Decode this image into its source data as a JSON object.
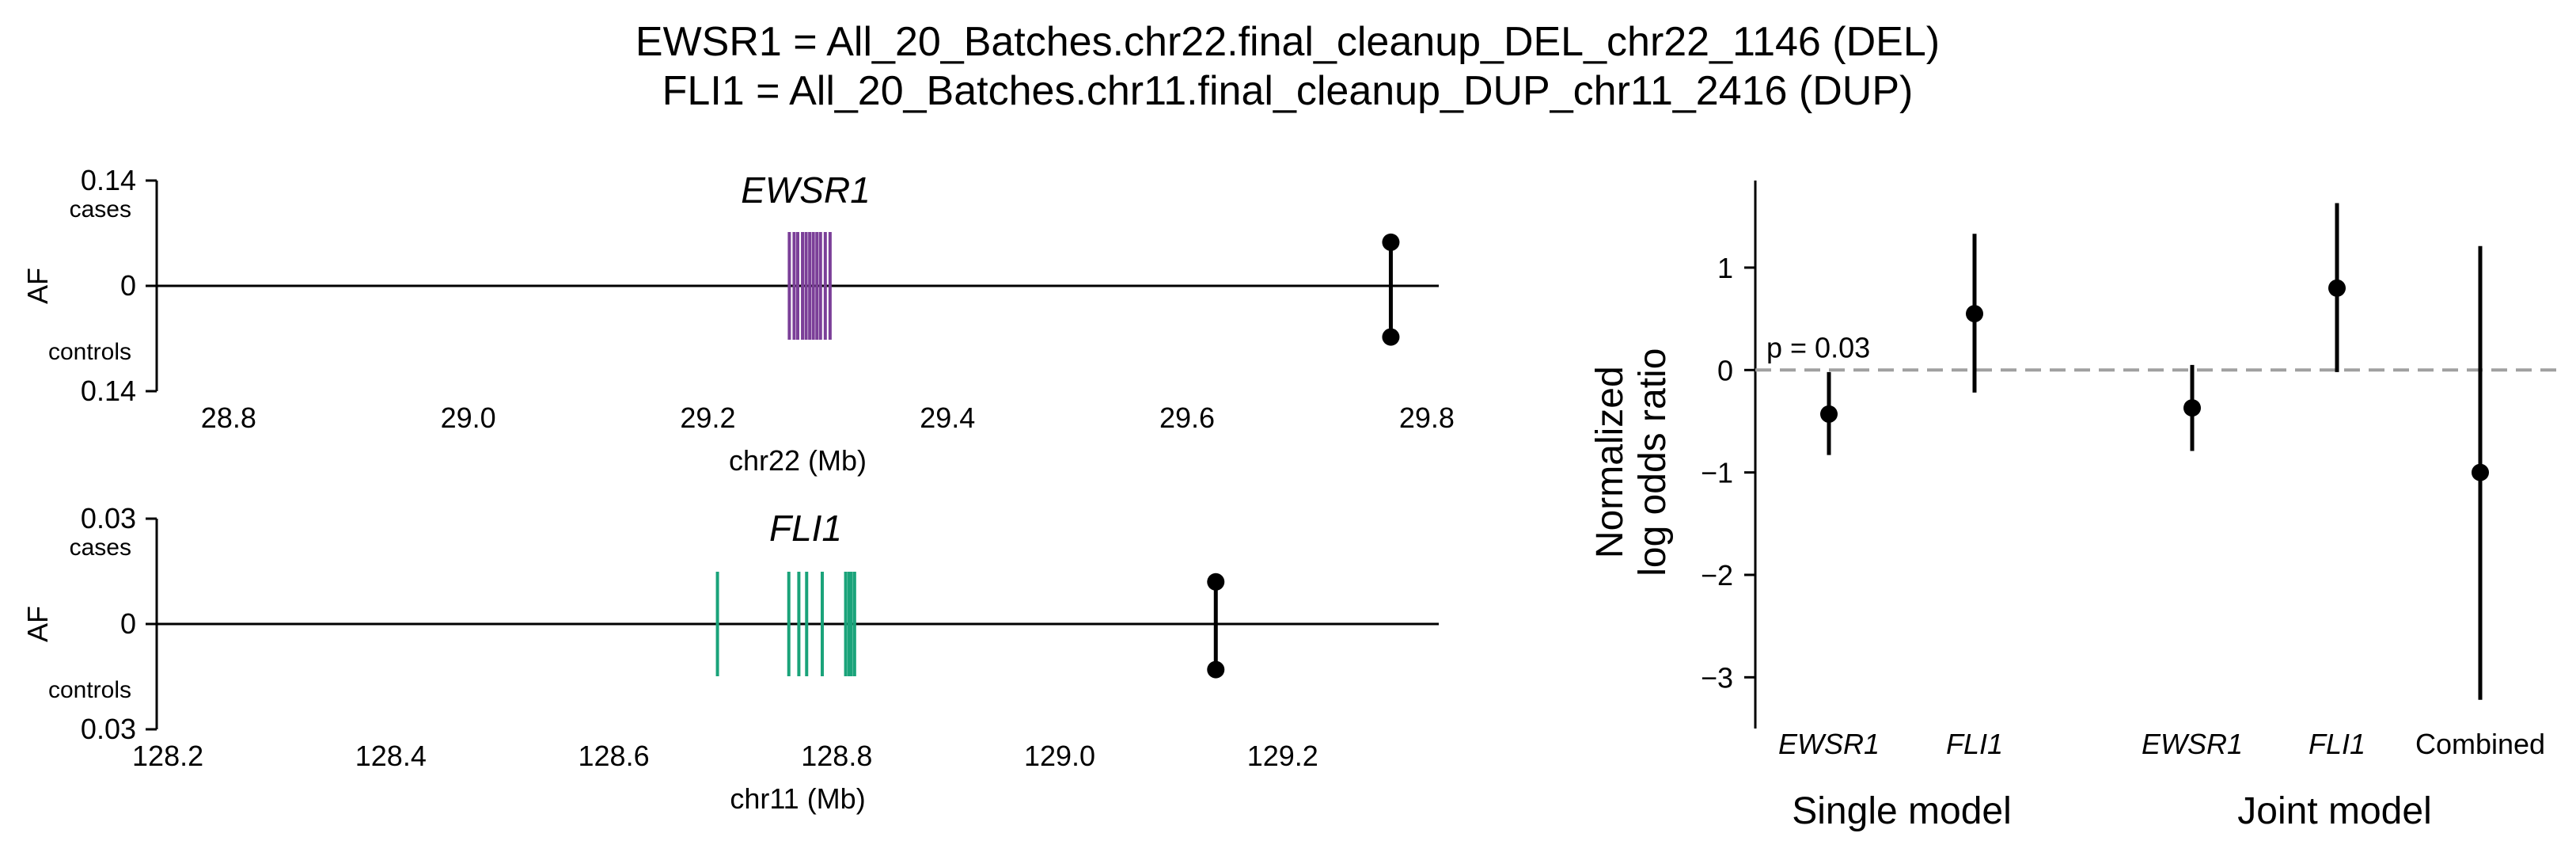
{
  "title_lines": [
    "EWSR1 = All_20_Batches.chr22.final_cleanup_DEL_chr22_1146 (DEL)",
    "FLI1 = All_20_Batches.chr11.final_cleanup_DUP_chr11_2416 (DUP)"
  ],
  "chart_data": [
    {
      "type": "scatter",
      "panel": "EWSR1 locus",
      "title": "EWSR1",
      "xlabel": "chr22 (Mb)",
      "ylabel": "AF",
      "xlim": [
        28.74,
        29.81
      ],
      "ylim": [
        -0.14,
        0.14
      ],
      "x_ticks": [
        28.8,
        29.0,
        29.2,
        29.4,
        29.6,
        29.8
      ],
      "x_tick_labels": [
        "28.8",
        "29.0",
        "29.2",
        "29.4",
        "29.6",
        "29.8"
      ],
      "y_tick_labels": [
        "0.14",
        "0",
        "0.14"
      ],
      "y_top_label": "cases",
      "y_bottom_label": "controls",
      "gene_color": "#7b3f98",
      "exons": [
        29.268,
        29.272,
        29.275,
        29.279,
        29.282,
        29.285,
        29.288,
        29.291,
        29.294,
        29.298,
        29.302
      ],
      "sv": {
        "x": 29.77,
        "af_cases": 0.058,
        "af_controls": 0.068
      }
    },
    {
      "type": "scatter",
      "panel": "FLI1 locus",
      "title": "FLI1",
      "xlabel": "chr11 (Mb)",
      "ylabel": "AF",
      "xlim": [
        128.19,
        129.34
      ],
      "ylim": [
        -0.03,
        0.03
      ],
      "x_ticks": [
        128.2,
        128.4,
        128.6,
        128.8,
        129.0,
        129.2
      ],
      "x_tick_labels": [
        "128.2",
        "128.4",
        "128.6",
        "128.8",
        "129.0",
        "129.2"
      ],
      "y_tick_labels": [
        "0.03",
        "0",
        "0.03"
      ],
      "y_top_label": "cases",
      "y_bottom_label": "controls",
      "gene_color": "#1aa37a",
      "exons": [
        128.693,
        128.757,
        128.766,
        128.773,
        128.787,
        128.808,
        128.811,
        128.813,
        128.816
      ],
      "sv": {
        "x": 129.14,
        "af_cases": 0.012,
        "af_controls": 0.013
      }
    },
    {
      "type": "scatter",
      "panel": "log odds ratios",
      "ylabel": "Normalized log odds ratio",
      "ylim": [
        -3.5,
        1.85
      ],
      "y_ticks": [
        1,
        0,
        -1,
        -2,
        -3
      ],
      "y_tick_labels": [
        "1",
        "0",
        "−1",
        "−2",
        "−3"
      ],
      "reference_line": 0,
      "annotation": "p = 0.03",
      "categories": [
        "EWSR1",
        "FLI1",
        "EWSR1",
        "FLI1",
        "Combined"
      ],
      "italic_categories": [
        true,
        true,
        true,
        true,
        false
      ],
      "groups": [
        "Single model",
        "Joint model"
      ],
      "points": [
        {
          "estimate": -0.43,
          "lower": -0.83,
          "upper": -0.02
        },
        {
          "estimate": 0.55,
          "lower": -0.22,
          "upper": 1.33
        },
        {
          "estimate": -0.37,
          "lower": -0.79,
          "upper": 0.05
        },
        {
          "estimate": 0.8,
          "lower": -0.02,
          "upper": 1.63
        },
        {
          "estimate": -1.0,
          "lower": -3.22,
          "upper": 1.21
        }
      ]
    }
  ]
}
